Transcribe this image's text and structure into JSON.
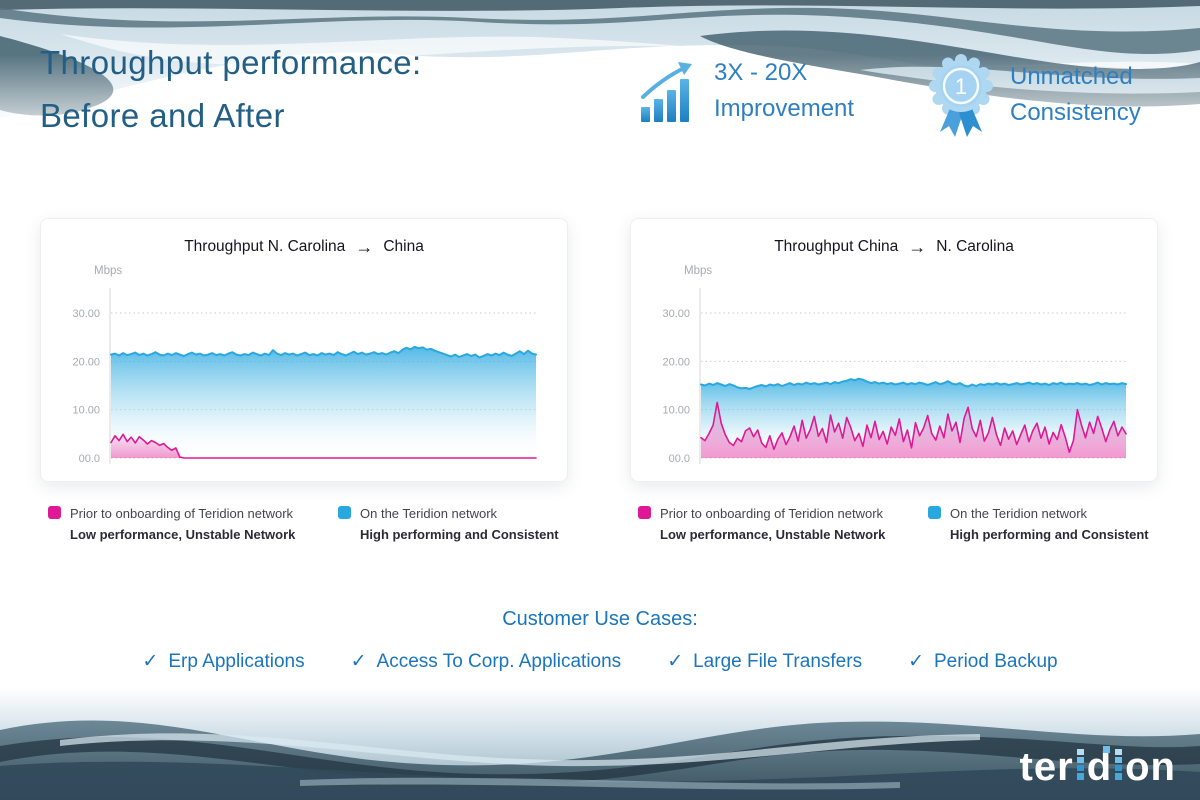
{
  "header": {
    "title_line1": "Throughput performance:",
    "title_line2": "Before and After",
    "stats": [
      {
        "icon": "growth-bars-icon",
        "line1": "3X - 20X",
        "line2": "Improvement"
      },
      {
        "icon": "award-ribbon-icon",
        "badge_number": "1",
        "line1": "Unmatched",
        "line2": "Consistency"
      }
    ]
  },
  "charts_common": {
    "y_axis_unit": "Mbps",
    "y_tick_labels": [
      "30.00",
      "20.00",
      "10.00",
      "00.0"
    ],
    "y_tick_values": [
      30,
      20,
      10,
      0
    ],
    "ylim": [
      0,
      35
    ],
    "grid": "dotted",
    "legend": [
      {
        "color": "#df1995",
        "label": "Prior to onboarding of Teridion network",
        "sublabel": "Low performance, Unstable Network"
      },
      {
        "color": "#29a8e0",
        "label": "On the Teridion network",
        "sublabel": "High performing and Consistent"
      }
    ]
  },
  "chart_data": [
    {
      "type": "area",
      "title_from": "Throughput N. Carolina",
      "arrow": "→",
      "title_to": "China",
      "ylabel": "Mbps",
      "ylim": [
        0,
        35
      ],
      "series": [
        {
          "name": "On the Teridion network",
          "color": "#29a8e0",
          "values": [
            21.4,
            21.6,
            21.2,
            21.7,
            21.3,
            21.5,
            21.8,
            21.3,
            21.6,
            21.2,
            21.5,
            21.9,
            21.4,
            21.2,
            21.6,
            21.3,
            21.7,
            21.4,
            21.1,
            21.5,
            21.8,
            21.4,
            21.6,
            21.2,
            21.4,
            21.7,
            21.3,
            21.5,
            21.2,
            21.6,
            21.9,
            21.4,
            21.2,
            21.5,
            21.3,
            21.8,
            21.5,
            21.2,
            21.6,
            21.3,
            22.3,
            21.6,
            21.3,
            21.7,
            21.4,
            21.6,
            21.2,
            21.5,
            21.8,
            21.3,
            21.5,
            21.2,
            21.7,
            21.4,
            21.6,
            21.3,
            21.9,
            21.5,
            21.2,
            21.6,
            22.0,
            21.5,
            21.8,
            21.4,
            21.6,
            21.9,
            21.5,
            21.7,
            21.4,
            21.8,
            22.1,
            21.7,
            22.4,
            22.8,
            22.5,
            23.0,
            22.7,
            22.9,
            22.4,
            22.6,
            22.2,
            21.9,
            21.6,
            21.3,
            21.0,
            21.4,
            20.9,
            21.2,
            21.5,
            21.1,
            21.4,
            20.8,
            21.1,
            21.5,
            21.2,
            21.6,
            21.3,
            21.8,
            21.4,
            21.1,
            21.6,
            22.1,
            21.5,
            22.2,
            21.6,
            21.4
          ]
        },
        {
          "name": "Prior to onboarding of Teridion network",
          "color": "#df1995",
          "values": [
            3.2,
            4.6,
            3.6,
            4.9,
            3.4,
            4.3,
            3.1,
            4.4,
            3.7,
            2.9,
            3.6,
            3.2,
            2.6,
            3.0,
            2.2,
            1.6,
            2.1,
            0.2,
            0,
            0,
            0,
            0,
            0,
            0,
            0,
            0,
            0,
            0,
            0,
            0,
            0,
            0,
            0,
            0,
            0,
            0,
            0,
            0,
            0,
            0,
            0,
            0,
            0,
            0,
            0,
            0,
            0,
            0,
            0,
            0,
            0,
            0,
            0,
            0,
            0,
            0,
            0,
            0,
            0,
            0,
            0,
            0,
            0,
            0,
            0,
            0,
            0,
            0,
            0,
            0,
            0,
            0,
            0,
            0,
            0,
            0,
            0,
            0,
            0,
            0,
            0,
            0,
            0,
            0,
            0,
            0,
            0,
            0,
            0,
            0,
            0,
            0,
            0,
            0,
            0,
            0,
            0,
            0,
            0,
            0,
            0,
            0,
            0,
            0,
            0,
            0
          ]
        }
      ]
    },
    {
      "type": "area",
      "title_from": "Throughput China",
      "arrow": "→",
      "title_to": "N. Carolina",
      "ylabel": "Mbps",
      "ylim": [
        0,
        35
      ],
      "series": [
        {
          "name": "On the Teridion network",
          "color": "#29a8e0",
          "values": [
            15.2,
            15.0,
            15.4,
            15.1,
            15.5,
            15.2,
            14.9,
            15.3,
            15.0,
            14.6,
            14.4,
            14.5,
            14.3,
            14.6,
            14.9,
            15.1,
            14.8,
            15.2,
            15.0,
            15.3,
            14.9,
            15.2,
            15.5,
            15.1,
            15.4,
            15.2,
            15.6,
            15.3,
            15.5,
            15.2,
            15.4,
            15.6,
            15.3,
            15.7,
            15.5,
            15.8,
            16.0,
            16.3,
            16.1,
            16.4,
            16.2,
            15.8,
            15.5,
            15.7,
            15.4,
            15.6,
            15.3,
            15.5,
            15.2,
            15.4,
            15.6,
            15.2,
            15.5,
            15.3,
            15.6,
            15.4,
            15.1,
            15.4,
            15.7,
            15.3,
            15.5,
            15.9,
            15.4,
            15.2,
            15.5,
            15.0,
            14.8,
            15.2,
            14.9,
            15.3,
            15.1,
            15.4,
            15.2,
            15.5,
            15.2,
            15.4,
            15.1,
            15.3,
            15.5,
            15.2,
            15.4,
            15.6,
            15.3,
            15.5,
            15.2,
            15.4,
            15.1,
            15.5,
            15.3,
            15.6,
            15.2,
            15.4,
            15.3,
            15.5,
            15.2,
            15.4,
            15.1,
            15.3,
            15.6,
            15.2,
            15.5,
            15.3,
            15.4,
            15.2,
            15.5,
            15.3
          ]
        },
        {
          "name": "Prior to onboarding of Teridion network",
          "color": "#df1995",
          "values": [
            4.2,
            3.6,
            5.1,
            6.8,
            11.5,
            7.2,
            4.8,
            3.2,
            2.6,
            4.1,
            3.4,
            5.6,
            6.2,
            4.4,
            5.8,
            3.1,
            2.2,
            4.6,
            1.8,
            3.9,
            5.2,
            2.8,
            4.4,
            6.6,
            3.5,
            7.8,
            4.1,
            5.9,
            8.6,
            4.5,
            6.1,
            3.2,
            8.9,
            5.4,
            7.2,
            4.1,
            8.4,
            6.3,
            3.6,
            5.1,
            2.4,
            6.8,
            4.2,
            7.6,
            3.8,
            5.5,
            2.9,
            6.4,
            4.7,
            8.1,
            3.4,
            5.8,
            2.1,
            7.3,
            4.6,
            6.2,
            8.8,
            5.1,
            3.7,
            6.6,
            4.2,
            9.1,
            5.6,
            7.4,
            3.2,
            8.2,
            10.5,
            6.1,
            4.4,
            7.8,
            3.5,
            5.2,
            8.4,
            4.8,
            2.6,
            6.2,
            3.9,
            5.6,
            2.8,
            4.9,
            6.8,
            3.4,
            5.7,
            7.2,
            4.1,
            6.4,
            2.9,
            5.3,
            3.8,
            6.9,
            4.3,
            1.2,
            3.6,
            10.0,
            6.8,
            4.2,
            7.4,
            5.1,
            8.6,
            6.2,
            3.4,
            5.8,
            7.6,
            4.6,
            6.4,
            5.0
          ]
        }
      ]
    }
  ],
  "use_cases": {
    "heading": "Customer Use Cases:",
    "check": "✓",
    "items": [
      "Erp Applications",
      "Access To Corp. Applications",
      "Large File Transfers",
      "Period Backup"
    ]
  },
  "footer": {
    "logo_parts": [
      "ter",
      "d",
      "on"
    ]
  },
  "colors": {
    "title_blue": "#235e85",
    "stat_blue": "#2e7fc1",
    "usecase_blue": "#1b75bb",
    "series_pink": "#df1995",
    "series_blue": "#29a8e0"
  }
}
